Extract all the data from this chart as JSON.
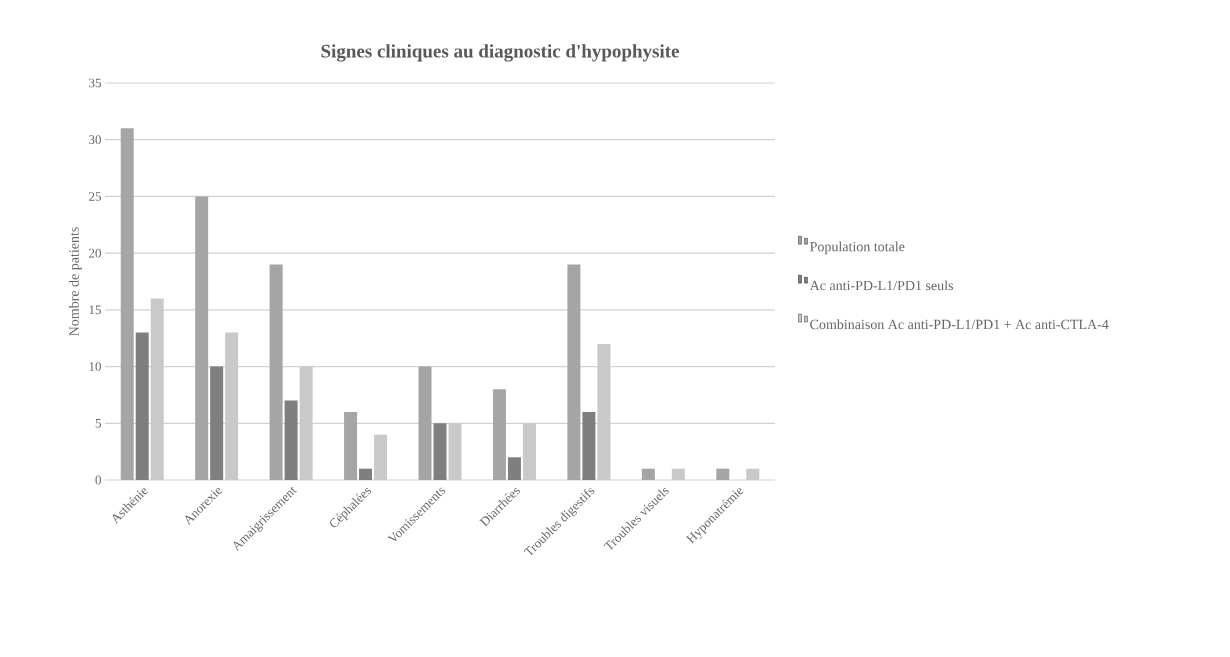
{
  "chart_data": {
    "type": "bar",
    "title": "Signes cliniques au diagnostic d'hypophysite",
    "ylabel": "Nombre de patients",
    "categories": [
      "Asthénie",
      "Anorexie",
      "Amaigrissement",
      "Céphalées",
      "Vomissements",
      "Diarrhées",
      "Troubles digestifs",
      "Troubles visuels",
      "Hyponatrémie"
    ],
    "series": [
      {
        "name": "Population totale",
        "color": "#a5a5a5",
        "values": [
          31,
          25,
          19,
          6,
          10,
          8,
          19,
          1,
          1
        ]
      },
      {
        "name": "Ac anti-PD-L1/PD1 seuls",
        "color": "#7f7f7f",
        "values": [
          13,
          10,
          7,
          1,
          5,
          2,
          6,
          0,
          0
        ]
      },
      {
        "name": "Combinaison Ac anti-PD-L1/PD1 + Ac anti-CTLA-4",
        "color": "#c9c9c9",
        "values": [
          16,
          13,
          10,
          4,
          5,
          5,
          12,
          1,
          1
        ]
      }
    ],
    "ylim": [
      0,
      35
    ],
    "yticks": [
      0,
      5,
      10,
      15,
      20,
      25,
      30,
      35
    ],
    "grid": "y",
    "legend": "right"
  }
}
